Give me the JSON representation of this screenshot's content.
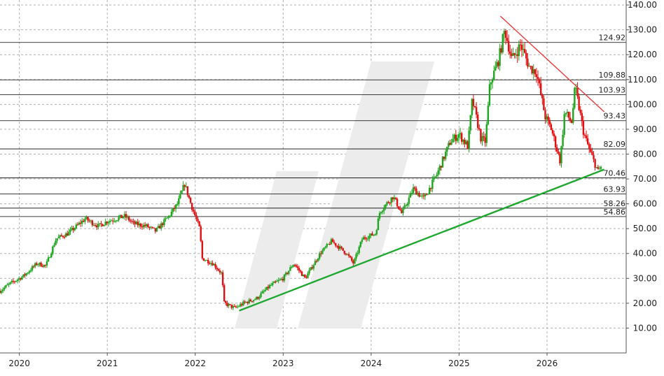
{
  "chart_data": {
    "type": "candlestick",
    "title": "",
    "xlabel": "",
    "ylabel": "",
    "ylim": [
      0,
      142
    ],
    "y_axis_position": "right",
    "y_ticks": [
      "140.00",
      "130.00",
      "120.00",
      "110.00",
      "100.00",
      "90.00",
      "80.00",
      "70.00",
      "60.00",
      "50.00",
      "40.00",
      "30.00",
      "20.00",
      "10.00"
    ],
    "x_ticks": [
      "2020",
      "2021",
      "2022",
      "2023",
      "2024",
      "2025",
      "2026"
    ],
    "x_tick_values": [
      2020,
      2021,
      2022,
      2023,
      2024,
      2025,
      2026
    ],
    "xlim": [
      2019.78,
      2026.9
    ],
    "grid": "dashed",
    "colors": {
      "up": "#1fa61f",
      "down": "#e01010",
      "support": "#1fa830",
      "resistance": "#ee3333",
      "level": "#000000",
      "grid": "#b0b0b0"
    },
    "horizontal_levels": [
      {
        "value": 124.92,
        "label": "124.92"
      },
      {
        "value": 109.88,
        "label": "109.88"
      },
      {
        "value": 103.93,
        "label": "103.93"
      },
      {
        "value": 93.43,
        "label": "93.43"
      },
      {
        "value": 82.09,
        "label": "82.09"
      },
      {
        "value": 70.46,
        "label": "70.46"
      },
      {
        "value": 63.93,
        "label": "63.93"
      },
      {
        "value": 58.26,
        "label": "58.26"
      },
      {
        "value": 54.86,
        "label": "54.86"
      }
    ],
    "support_line": {
      "start": [
        2022.5,
        17.0
      ],
      "end": [
        2026.65,
        73.8
      ]
    },
    "resistance_line": {
      "start": [
        2025.47,
        135.5
      ],
      "end": [
        2026.65,
        97.0
      ]
    },
    "price_path": [
      [
        2019.78,
        25
      ],
      [
        2019.9,
        28
      ],
      [
        2020.05,
        31
      ],
      [
        2020.2,
        36
      ],
      [
        2020.3,
        35
      ],
      [
        2020.42,
        46
      ],
      [
        2020.55,
        48
      ],
      [
        2020.75,
        54
      ],
      [
        2020.9,
        51
      ],
      [
        2021.0,
        53
      ],
      [
        2021.2,
        55
      ],
      [
        2021.3,
        52
      ],
      [
        2021.45,
        51
      ],
      [
        2021.55,
        49
      ],
      [
        2021.7,
        55
      ],
      [
        2021.8,
        60
      ],
      [
        2021.88,
        68
      ],
      [
        2021.95,
        60
      ],
      [
        2022.05,
        50
      ],
      [
        2022.08,
        38
      ],
      [
        2022.2,
        36
      ],
      [
        2022.3,
        32
      ],
      [
        2022.33,
        20
      ],
      [
        2022.45,
        18
      ],
      [
        2022.55,
        20
      ],
      [
        2022.7,
        22
      ],
      [
        2022.85,
        27
      ],
      [
        2023.0,
        30
      ],
      [
        2023.12,
        36
      ],
      [
        2023.25,
        30
      ],
      [
        2023.42,
        40
      ],
      [
        2023.55,
        45
      ],
      [
        2023.72,
        40
      ],
      [
        2023.8,
        36
      ],
      [
        2023.9,
        46
      ],
      [
        2024.05,
        48
      ],
      [
        2024.1,
        57
      ],
      [
        2024.25,
        63
      ],
      [
        2024.35,
        56
      ],
      [
        2024.48,
        66
      ],
      [
        2024.6,
        62
      ],
      [
        2024.75,
        72
      ],
      [
        2024.9,
        85
      ],
      [
        2025.0,
        88
      ],
      [
        2025.1,
        83
      ],
      [
        2025.15,
        102
      ],
      [
        2025.25,
        86
      ],
      [
        2025.3,
        85
      ],
      [
        2025.35,
        108
      ],
      [
        2025.45,
        118
      ],
      [
        2025.52,
        130
      ],
      [
        2025.6,
        118
      ],
      [
        2025.7,
        124
      ],
      [
        2025.8,
        115
      ],
      [
        2025.88,
        113
      ],
      [
        2025.98,
        95
      ],
      [
        2026.05,
        90
      ],
      [
        2026.15,
        77
      ],
      [
        2026.2,
        97
      ],
      [
        2026.28,
        93
      ],
      [
        2026.32,
        107
      ],
      [
        2026.42,
        88
      ],
      [
        2026.5,
        80
      ],
      [
        2026.58,
        73
      ],
      [
        2026.62,
        75
      ]
    ]
  }
}
